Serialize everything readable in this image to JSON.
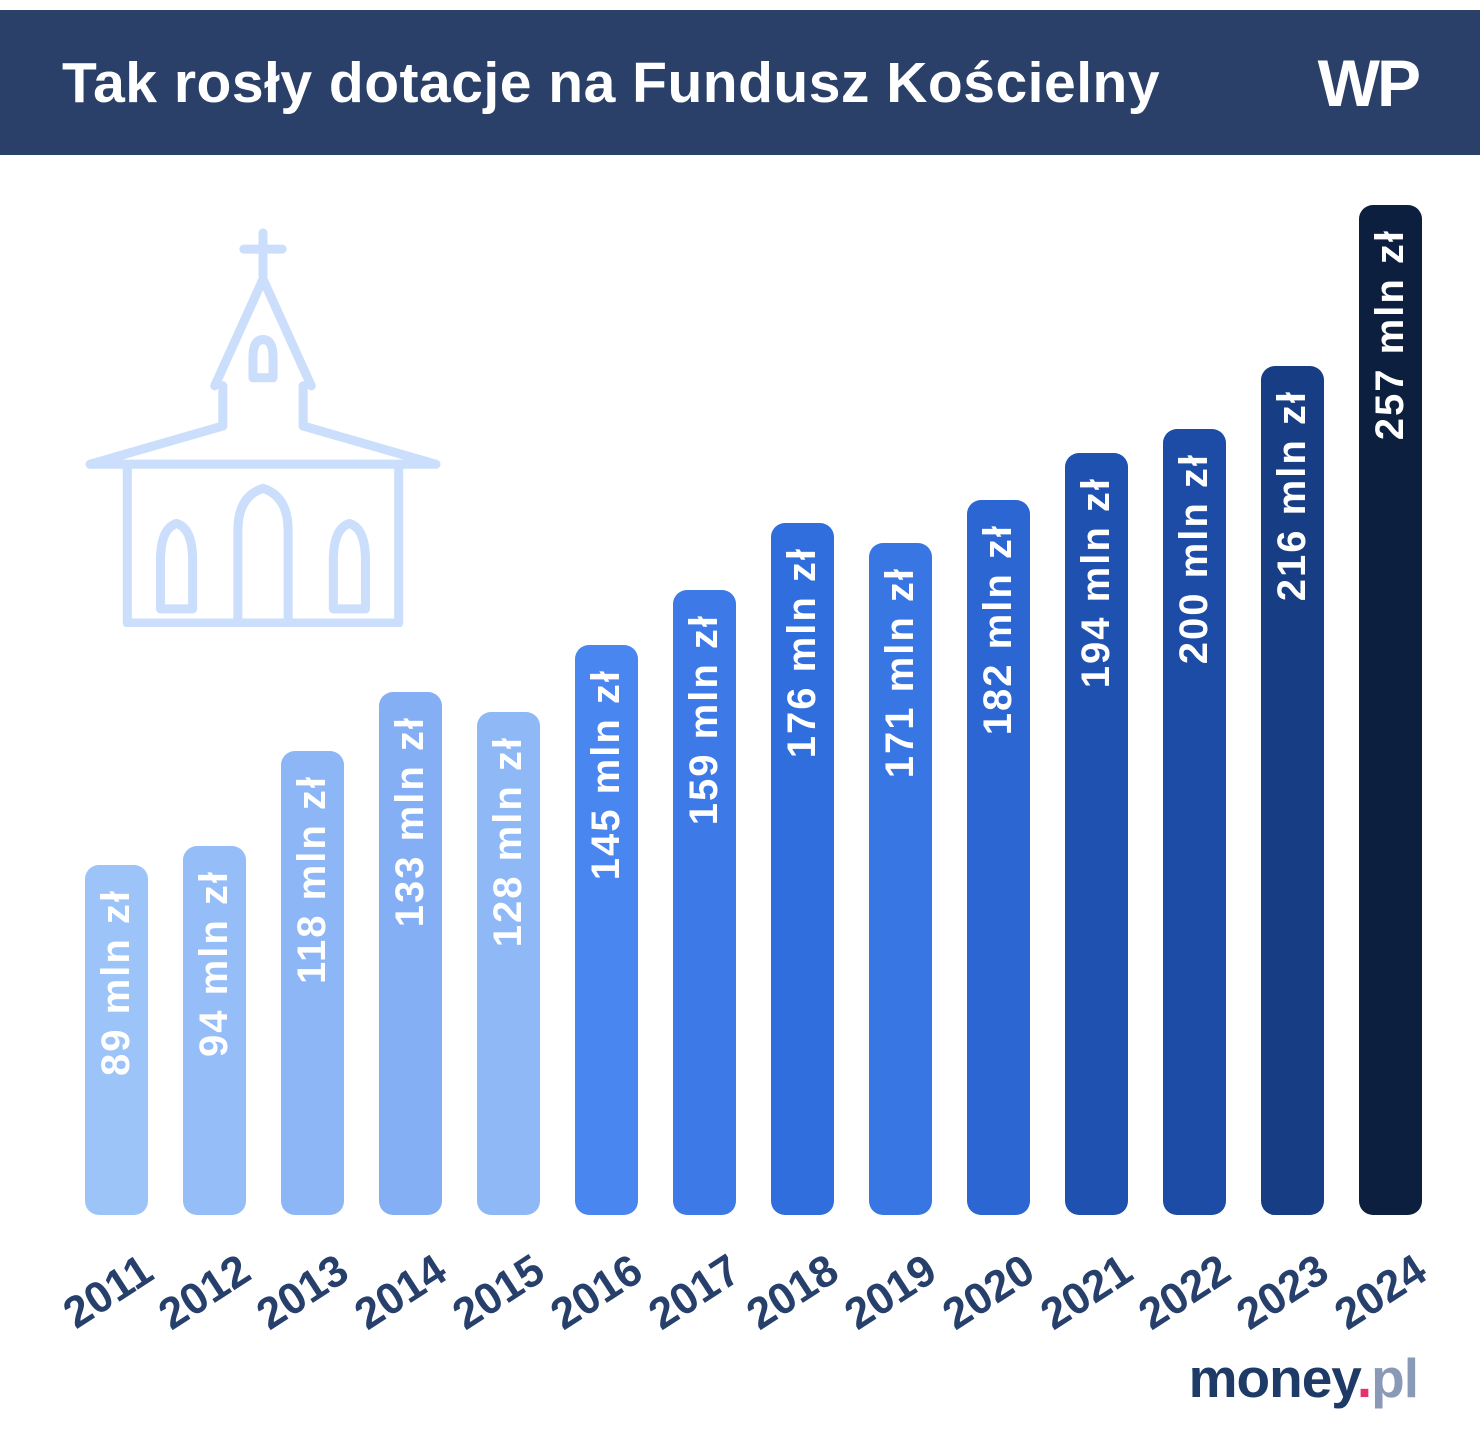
{
  "header": {
    "title": "Tak rosły dotacje na Fundusz Kościelny",
    "logo_text": "WP",
    "background_color": "#2A4068",
    "text_color": "#FFFFFF"
  },
  "chart_data": {
    "type": "bar",
    "title": "Tak rosły dotacje na Fundusz Kościelny",
    "unit": "mln zł",
    "categories": [
      "2011",
      "2012",
      "2013",
      "2014",
      "2015",
      "2016",
      "2017",
      "2018",
      "2019",
      "2020",
      "2021",
      "2022",
      "2023",
      "2024"
    ],
    "values": [
      89,
      94,
      118,
      133,
      128,
      145,
      159,
      176,
      171,
      182,
      194,
      200,
      216,
      257
    ],
    "value_labels": [
      "89 mln zł",
      "94 mln zł",
      "118 mln zł",
      "133 mln zł",
      "128 mln zł",
      "145 mln zł",
      "159 mln zł",
      "176 mln zł",
      "171 mln zł",
      "182 mln zł",
      "194 mln zł",
      "200 mln zł",
      "216 mln zł",
      "257 mln zł"
    ],
    "bar_colors": [
      "#9DC4F8",
      "#95BDF7",
      "#8CB6F6",
      "#84AFF5",
      "#8EB9F6",
      "#4A86EF",
      "#3D7AE8",
      "#2F6EDC",
      "#3877E3",
      "#2B66D3",
      "#1F52B0",
      "#1C4CA5",
      "#173D85",
      "#0D1F3E"
    ],
    "ylim": [
      0,
      257
    ],
    "grid": false,
    "legend": false,
    "value_label_position": "inside-top, rotated, reads bottom to top",
    "x_tick_rotation": -33,
    "x_tick_color": "#26406B",
    "icon": "church-outline-icon",
    "icon_color": "#CBDEFB"
  },
  "footer": {
    "brand_money": "money",
    "brand_dot": ".",
    "brand_pl": "pl",
    "brand_colors": {
      "money": "#1E3A66",
      "dot": "#E5326E",
      "pl": "#8A99B5"
    }
  }
}
